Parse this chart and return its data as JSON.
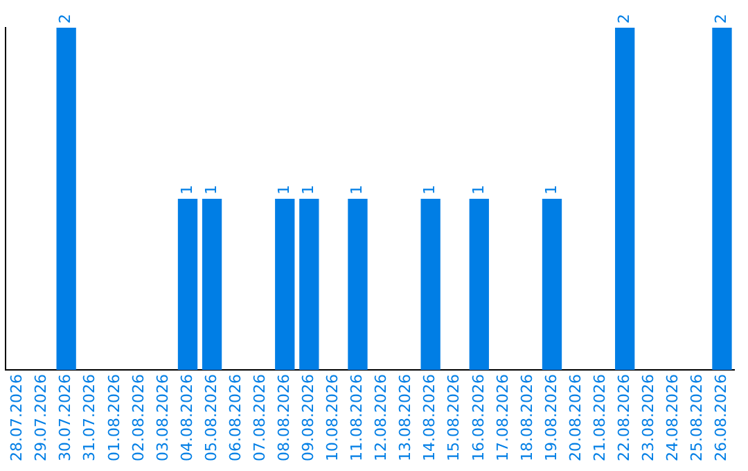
{
  "chart_data": {
    "type": "bar",
    "categories": [
      "28.07.2026",
      "29.07.2026",
      "30.07.2026",
      "31.07.2026",
      "01.08.2026",
      "02.08.2026",
      "03.08.2026",
      "04.08.2026",
      "05.08.2026",
      "06.08.2026",
      "07.08.2026",
      "08.08.2026",
      "09.08.2026",
      "10.08.2026",
      "11.08.2026",
      "12.08.2026",
      "13.08.2026",
      "14.08.2026",
      "15.08.2026",
      "16.08.2026",
      "17.08.2026",
      "18.08.2026",
      "19.08.2026",
      "20.08.2026",
      "21.08.2026",
      "22.08.2026",
      "23.08.2026",
      "24.08.2026",
      "25.08.2026",
      "26.08.2026"
    ],
    "values": [
      0,
      0,
      2,
      0,
      0,
      0,
      0,
      1,
      1,
      0,
      0,
      1,
      1,
      0,
      1,
      0,
      0,
      1,
      0,
      1,
      0,
      0,
      1,
      0,
      0,
      2,
      0,
      0,
      0,
      2
    ],
    "value_labels": [
      null,
      null,
      "2",
      null,
      null,
      null,
      null,
      "1",
      "1",
      null,
      null,
      "1",
      "1",
      null,
      "1",
      null,
      null,
      "1",
      null,
      "1",
      null,
      null,
      "1",
      null,
      null,
      "2",
      null,
      null,
      null,
      "2"
    ],
    "color": "#007ee5"
  }
}
